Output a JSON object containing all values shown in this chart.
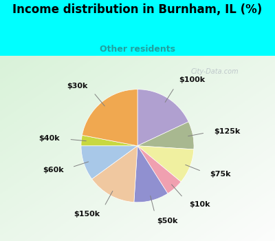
{
  "title": "Income distribution in Burnham, IL (%)",
  "subtitle": "Other residents",
  "title_color": "#000000",
  "subtitle_color": "#20a0a0",
  "background_top": "#00ffff",
  "watermark": "City-Data.com",
  "labels": [
    "$100k",
    "$125k",
    "$75k",
    "$10k",
    "$50k",
    "$150k",
    "$60k",
    "$40k",
    "$30k"
  ],
  "values": [
    18,
    8,
    10,
    5,
    10,
    14,
    10,
    3,
    22
  ],
  "colors": [
    "#b0a0d0",
    "#a8b890",
    "#f0f0a0",
    "#f0a0b0",
    "#9090d0",
    "#f0c8a0",
    "#a8c8e8",
    "#c8d840",
    "#f0a850"
  ],
  "startangle": 90,
  "label_fontsize": 8,
  "title_fontsize": 12,
  "subtitle_fontsize": 9
}
